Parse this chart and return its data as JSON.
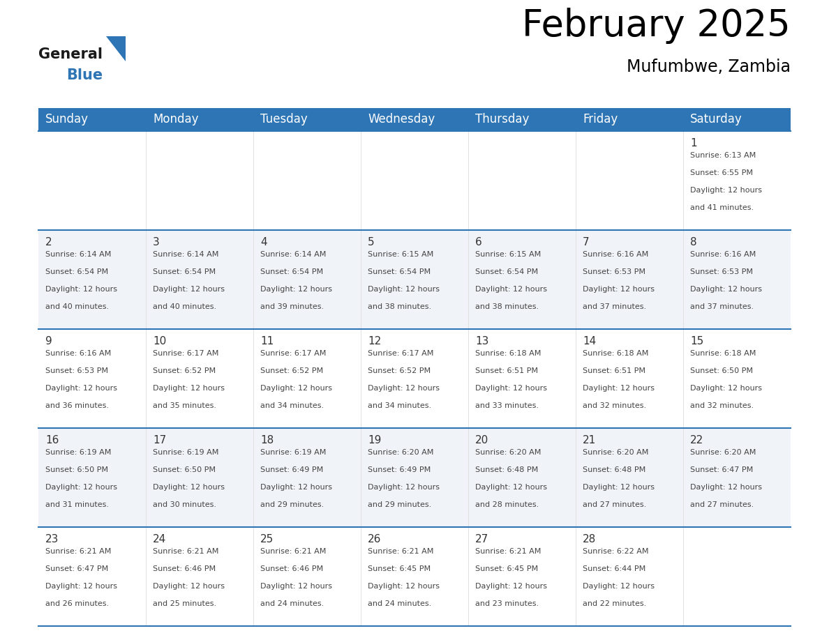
{
  "title": "February 2025",
  "subtitle": "Mufumbwe, Zambia",
  "header_color": "#2E75B6",
  "header_text_color": "#FFFFFF",
  "days_of_week": [
    "Sunday",
    "Monday",
    "Tuesday",
    "Wednesday",
    "Thursday",
    "Friday",
    "Saturday"
  ],
  "title_fontsize": 38,
  "subtitle_fontsize": 17,
  "header_fontsize": 12,
  "day_num_fontsize": 11,
  "info_fontsize": 8,
  "cell_bg_even": "#FFFFFF",
  "cell_bg_odd": "#F0F4F8",
  "header_line_color": "#2E75B6",
  "text_color": "#444444",
  "calendar_data": [
    [
      null,
      null,
      null,
      null,
      null,
      null,
      {
        "day": 1,
        "sunrise": "6:13 AM",
        "sunset": "6:55 PM",
        "daylight_extra": "41 minutes."
      }
    ],
    [
      {
        "day": 2,
        "sunrise": "6:14 AM",
        "sunset": "6:54 PM",
        "daylight_extra": "40 minutes."
      },
      {
        "day": 3,
        "sunrise": "6:14 AM",
        "sunset": "6:54 PM",
        "daylight_extra": "40 minutes."
      },
      {
        "day": 4,
        "sunrise": "6:14 AM",
        "sunset": "6:54 PM",
        "daylight_extra": "39 minutes."
      },
      {
        "day": 5,
        "sunrise": "6:15 AM",
        "sunset": "6:54 PM",
        "daylight_extra": "38 minutes."
      },
      {
        "day": 6,
        "sunrise": "6:15 AM",
        "sunset": "6:54 PM",
        "daylight_extra": "38 minutes."
      },
      {
        "day": 7,
        "sunrise": "6:16 AM",
        "sunset": "6:53 PM",
        "daylight_extra": "37 minutes."
      },
      {
        "day": 8,
        "sunrise": "6:16 AM",
        "sunset": "6:53 PM",
        "daylight_extra": "37 minutes."
      }
    ],
    [
      {
        "day": 9,
        "sunrise": "6:16 AM",
        "sunset": "6:53 PM",
        "daylight_extra": "36 minutes."
      },
      {
        "day": 10,
        "sunrise": "6:17 AM",
        "sunset": "6:52 PM",
        "daylight_extra": "35 minutes."
      },
      {
        "day": 11,
        "sunrise": "6:17 AM",
        "sunset": "6:52 PM",
        "daylight_extra": "34 minutes."
      },
      {
        "day": 12,
        "sunrise": "6:17 AM",
        "sunset": "6:52 PM",
        "daylight_extra": "34 minutes."
      },
      {
        "day": 13,
        "sunrise": "6:18 AM",
        "sunset": "6:51 PM",
        "daylight_extra": "33 minutes."
      },
      {
        "day": 14,
        "sunrise": "6:18 AM",
        "sunset": "6:51 PM",
        "daylight_extra": "32 minutes."
      },
      {
        "day": 15,
        "sunrise": "6:18 AM",
        "sunset": "6:50 PM",
        "daylight_extra": "32 minutes."
      }
    ],
    [
      {
        "day": 16,
        "sunrise": "6:19 AM",
        "sunset": "6:50 PM",
        "daylight_extra": "31 minutes."
      },
      {
        "day": 17,
        "sunrise": "6:19 AM",
        "sunset": "6:50 PM",
        "daylight_extra": "30 minutes."
      },
      {
        "day": 18,
        "sunrise": "6:19 AM",
        "sunset": "6:49 PM",
        "daylight_extra": "29 minutes."
      },
      {
        "day": 19,
        "sunrise": "6:20 AM",
        "sunset": "6:49 PM",
        "daylight_extra": "29 minutes."
      },
      {
        "day": 20,
        "sunrise": "6:20 AM",
        "sunset": "6:48 PM",
        "daylight_extra": "28 minutes."
      },
      {
        "day": 21,
        "sunrise": "6:20 AM",
        "sunset": "6:48 PM",
        "daylight_extra": "27 minutes."
      },
      {
        "day": 22,
        "sunrise": "6:20 AM",
        "sunset": "6:47 PM",
        "daylight_extra": "27 minutes."
      }
    ],
    [
      {
        "day": 23,
        "sunrise": "6:21 AM",
        "sunset": "6:47 PM",
        "daylight_extra": "26 minutes."
      },
      {
        "day": 24,
        "sunrise": "6:21 AM",
        "sunset": "6:46 PM",
        "daylight_extra": "25 minutes."
      },
      {
        "day": 25,
        "sunrise": "6:21 AM",
        "sunset": "6:46 PM",
        "daylight_extra": "24 minutes."
      },
      {
        "day": 26,
        "sunrise": "6:21 AM",
        "sunset": "6:45 PM",
        "daylight_extra": "24 minutes."
      },
      {
        "day": 27,
        "sunrise": "6:21 AM",
        "sunset": "6:45 PM",
        "daylight_extra": "23 minutes."
      },
      {
        "day": 28,
        "sunrise": "6:22 AM",
        "sunset": "6:44 PM",
        "daylight_extra": "22 minutes."
      },
      null
    ]
  ]
}
